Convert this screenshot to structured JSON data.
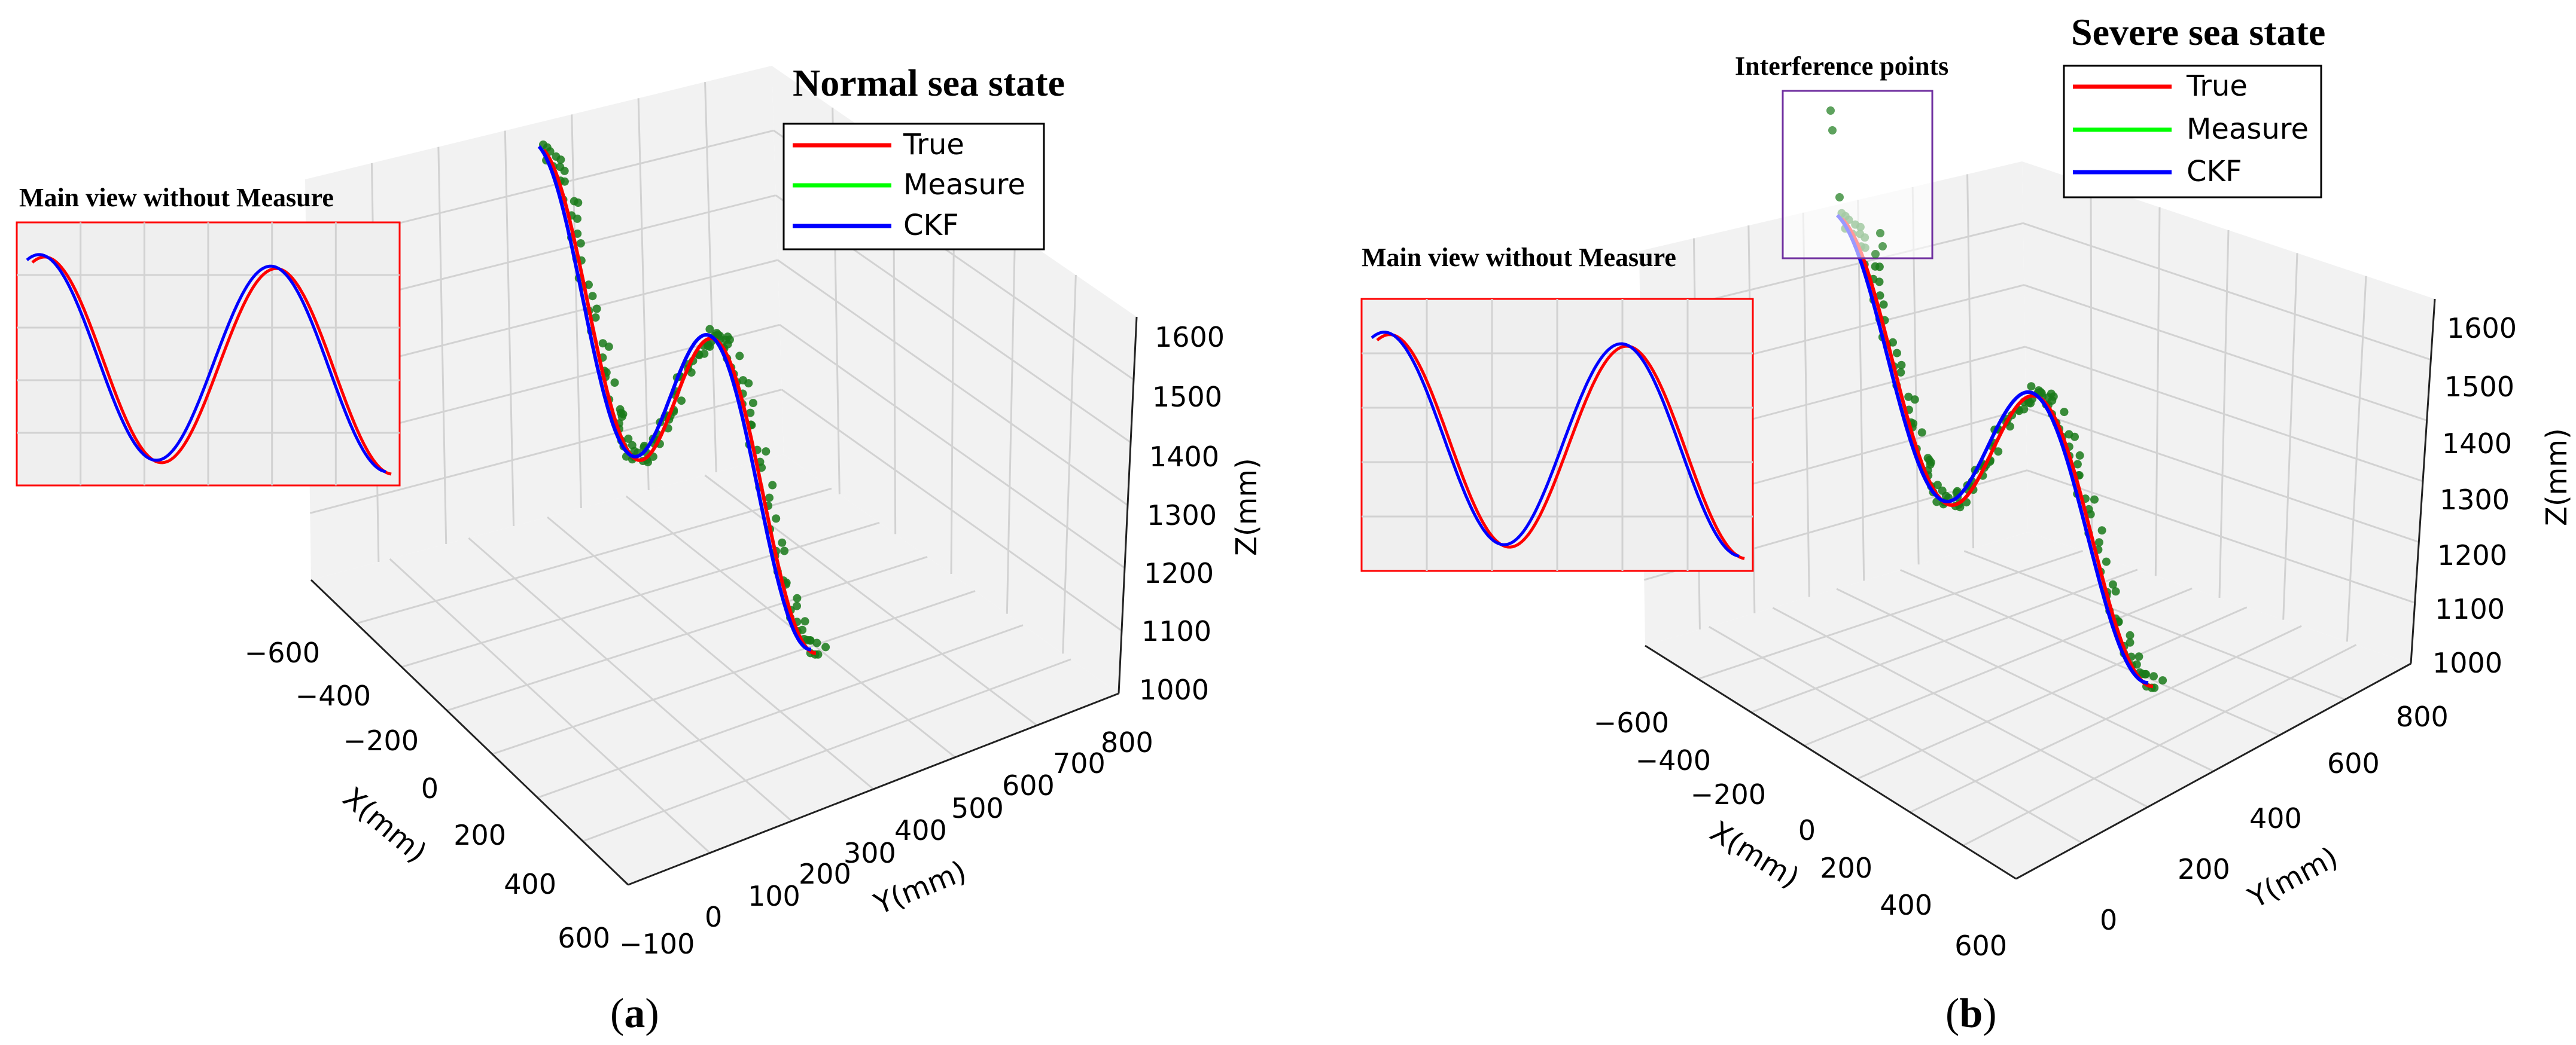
{
  "chart_data": [
    {
      "type": "line3d",
      "title": "Normal sea state",
      "xlabel": "X(mm)",
      "ylabel": "Y(mm)",
      "zlabel": "Z(mm)",
      "xticks": [
        "−600",
        "−400",
        "−200",
        "0",
        "200",
        "400",
        "600"
      ],
      "yticks": [
        "−100",
        "0",
        "100",
        "200",
        "300",
        "400",
        "500",
        "600",
        "700",
        "800"
      ],
      "zticks": [
        "1000",
        "1100",
        "1200",
        "1300",
        "1400",
        "1500",
        "1600"
      ],
      "legend": [
        {
          "label": "True",
          "color": "#ff0000"
        },
        {
          "label": "Measure",
          "color": "#00ff00"
        },
        {
          "label": "CKF",
          "color": "#0000ff"
        }
      ],
      "inset_title": "Main view without Measure",
      "interference_label": "",
      "caption": "a",
      "series": {
        "z_wave": {
          "amplitude_mm": 200,
          "center_mm": 1330,
          "cycles": 1.5
        },
        "True": {
          "color": "#ff0000"
        },
        "Measure": {
          "color": "#1a7a1a",
          "style": "points"
        },
        "CKF": {
          "color": "#0000ff"
        }
      }
    },
    {
      "type": "line3d",
      "title": "Severe sea state",
      "xlabel": "X(mm)",
      "ylabel": "Y(mm)",
      "zlabel": "Z(mm)",
      "xticks": [
        "−600",
        "−400",
        "−200",
        "0",
        "200",
        "400",
        "600"
      ],
      "yticks": [
        "0",
        "200",
        "400",
        "600",
        "800"
      ],
      "zticks": [
        "1000",
        "1100",
        "1200",
        "1300",
        "1400",
        "1500",
        "1600"
      ],
      "legend": [
        {
          "label": "True",
          "color": "#ff0000"
        },
        {
          "label": "Measure",
          "color": "#00ff00"
        },
        {
          "label": "CKF",
          "color": "#0000ff"
        }
      ],
      "inset_title": "Main view without Measure",
      "interference_label": "Interference points",
      "caption": "b",
      "series": {
        "z_wave": {
          "amplitude_mm": 180,
          "center_mm": 1340,
          "cycles": 1.5
        },
        "True": {
          "color": "#ff0000"
        },
        "Measure": {
          "color": "#1a7a1a",
          "style": "points"
        },
        "CKF": {
          "color": "#0000ff"
        }
      }
    }
  ]
}
